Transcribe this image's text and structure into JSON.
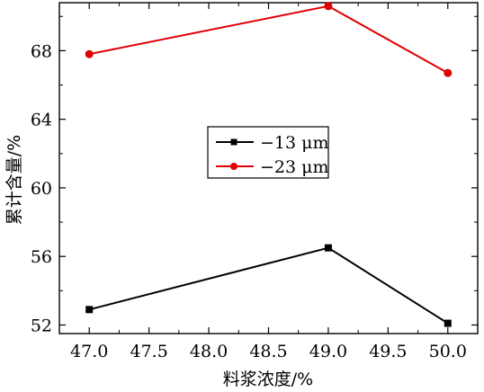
{
  "chart_data": {
    "type": "line",
    "xlabel": "料浆浓度/%",
    "ylabel": "累计含量/%",
    "xlim": [
      46.75,
      50.25
    ],
    "ylim": [
      51.5,
      70.8
    ],
    "x_ticks": [
      47.0,
      47.5,
      48.0,
      48.5,
      49.0,
      49.5,
      50.0
    ],
    "x_tick_labels": [
      "47.0",
      "47.5",
      "48.0",
      "48.5",
      "49.0",
      "49.5",
      "50.0"
    ],
    "y_ticks": [
      52,
      56,
      60,
      64,
      68
    ],
    "y_tick_labels": [
      "52",
      "56",
      "60",
      "64",
      "68"
    ],
    "grid": false,
    "legend_position": "center",
    "series": [
      {
        "name": "−13 μm",
        "color": "#000000",
        "marker": "square",
        "x": [
          47.0,
          49.0,
          50.0
        ],
        "y": [
          52.9,
          56.5,
          52.1
        ]
      },
      {
        "name": "−23 μm",
        "color": "#e00000",
        "marker": "circle",
        "x": [
          47.0,
          49.0,
          50.0
        ],
        "y": [
          67.8,
          70.6,
          66.7
        ]
      }
    ]
  }
}
